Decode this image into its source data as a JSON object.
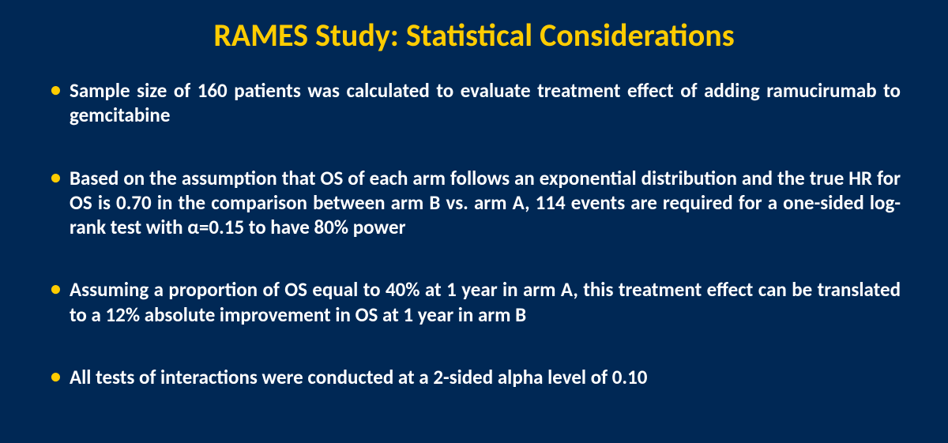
{
  "slide": {
    "background_color": "#002855",
    "title_color": "#ffcc00",
    "text_color": "#ffffff",
    "bullet_color": "#ffcc00",
    "title_fontsize": 40,
    "body_fontsize": 25,
    "title": "RAMES Study: Statistical Considerations",
    "bullets": [
      "Sample size of 160 patients was calculated to evaluate treatment effect of adding ramucirumab to gemcitabine",
      "Based on the assumption that OS of each arm follows an exponential distribution and the true HR for OS is 0.70 in the comparison between arm B vs. arm A, 114 events are required for a one-sided log-rank test with α=0.15 to have 80% power",
      "Assuming a proportion of OS equal to 40% at 1 year in arm A, this treatment effect can be translated to a 12% absolute improvement in OS at 1 year in arm B",
      "All tests of interactions were conducted at a 2-sided alpha level of 0.10"
    ]
  }
}
